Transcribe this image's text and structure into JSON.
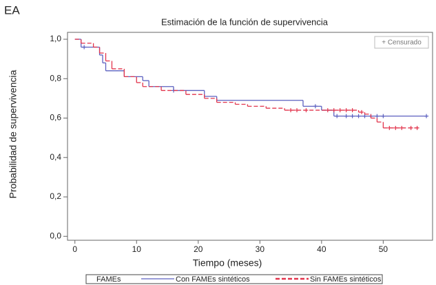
{
  "panel_label": "EA",
  "chart_data": {
    "type": "line",
    "step": true,
    "title": "Estimación de la función de supervivencia",
    "xlabel": "Tiempo (meses)",
    "ylabel": "Probabilidad de supervivencia",
    "censor_label": "+ Censurado",
    "legend_title": "FAMEs",
    "xlim": [
      -1.2,
      58
    ],
    "xticks": [
      0,
      10,
      20,
      30,
      40,
      50
    ],
    "ylim": [
      -0.02,
      1.035
    ],
    "yticks": [
      {
        "value": 0,
        "label": "0,0"
      },
      {
        "value": 0.2,
        "label": "0,2"
      },
      {
        "value": 0.4,
        "label": "0,4"
      },
      {
        "value": 0.6,
        "label": "0,6"
      },
      {
        "value": 0.8,
        "label": "0,8"
      },
      {
        "value": 1,
        "label": "1,0"
      }
    ],
    "series": [
      {
        "name": "Con FAMEs sintéticos",
        "color": "#5a5fbf",
        "dashed": false,
        "x": [
          0,
          1,
          4,
          4.5,
          5,
          8,
          11,
          12,
          16,
          21,
          23,
          37,
          40,
          42,
          57
        ],
        "values": [
          1.0,
          0.96,
          0.92,
          0.88,
          0.84,
          0.81,
          0.79,
          0.76,
          0.74,
          0.71,
          0.69,
          0.66,
          0.64,
          0.61,
          0.61
        ],
        "censored_x": [
          1.5,
          16,
          39,
          42.5,
          44,
          45,
          46,
          47,
          48,
          49,
          50,
          57
        ],
        "censored_values": [
          0.96,
          0.74,
          0.66,
          0.61,
          0.61,
          0.61,
          0.61,
          0.61,
          0.61,
          0.61,
          0.61,
          0.61
        ]
      },
      {
        "name": "Sin FAMEs sintéticos",
        "color": "#e2334b",
        "dashed": true,
        "x": [
          0,
          1,
          3,
          4,
          5,
          6,
          8,
          10,
          11,
          14,
          18,
          21,
          23,
          26,
          28,
          31,
          34,
          46,
          47,
          48,
          49,
          50,
          56
        ],
        "values": [
          1.0,
          0.98,
          0.96,
          0.93,
          0.89,
          0.85,
          0.81,
          0.78,
          0.76,
          0.74,
          0.72,
          0.7,
          0.68,
          0.67,
          0.66,
          0.65,
          0.64,
          0.63,
          0.62,
          0.6,
          0.58,
          0.55,
          0.55
        ],
        "censored_x": [
          35,
          36,
          37.5,
          41,
          42,
          43,
          44,
          45,
          46.5,
          51,
          52,
          53,
          54.5,
          55.5
        ],
        "censored_values": [
          0.64,
          0.64,
          0.64,
          0.64,
          0.64,
          0.64,
          0.64,
          0.64,
          0.63,
          0.55,
          0.55,
          0.55,
          0.55,
          0.55
        ]
      }
    ]
  }
}
